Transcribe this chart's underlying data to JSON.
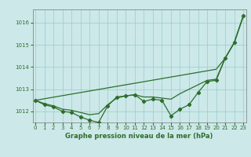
{
  "xlabel": "Graphe pression niveau de la mer (hPa)",
  "background_color": "#cce8e8",
  "plot_bg_color": "#cce8e8",
  "grid_color": "#99cccc",
  "line_color": "#2d6e2d",
  "x": [
    0,
    1,
    2,
    3,
    4,
    5,
    6,
    7,
    8,
    9,
    10,
    11,
    12,
    13,
    14,
    15,
    16,
    17,
    18,
    19,
    20,
    21,
    22,
    23
  ],
  "trend_line": [
    1012.5,
    1012.57,
    1012.64,
    1012.71,
    1012.78,
    1012.85,
    1012.92,
    1012.99,
    1013.06,
    1013.13,
    1013.2,
    1013.27,
    1013.34,
    1013.41,
    1013.48,
    1013.55,
    1013.62,
    1013.69,
    1013.76,
    1013.83,
    1013.9,
    1014.4,
    1015.1,
    1016.3
  ],
  "smooth_line": [
    1012.5,
    1012.35,
    1012.25,
    1012.1,
    1012.05,
    1011.95,
    1011.85,
    1011.9,
    1012.3,
    1012.6,
    1012.7,
    1012.75,
    1012.65,
    1012.65,
    1012.6,
    1012.55,
    1012.8,
    1013.0,
    1013.2,
    1013.4,
    1013.45,
    1014.4,
    1015.1,
    1016.3
  ],
  "marked_line": [
    1012.5,
    1012.3,
    1012.2,
    1012.0,
    1011.95,
    1011.75,
    1011.6,
    1011.5,
    1012.25,
    1012.65,
    1012.7,
    1012.75,
    1012.45,
    1012.55,
    1012.5,
    1011.8,
    1012.1,
    1012.3,
    1012.85,
    1013.35,
    1013.4,
    1014.4,
    1015.1,
    1016.3
  ],
  "ylim": [
    1011.5,
    1016.6
  ],
  "yticks": [
    1012,
    1013,
    1014,
    1015,
    1016
  ],
  "xticks": [
    0,
    1,
    2,
    3,
    4,
    5,
    6,
    7,
    8,
    9,
    10,
    11,
    12,
    13,
    14,
    15,
    16,
    17,
    18,
    19,
    20,
    21,
    22,
    23
  ],
  "tick_fontsize": 5,
  "xlabel_fontsize": 6
}
